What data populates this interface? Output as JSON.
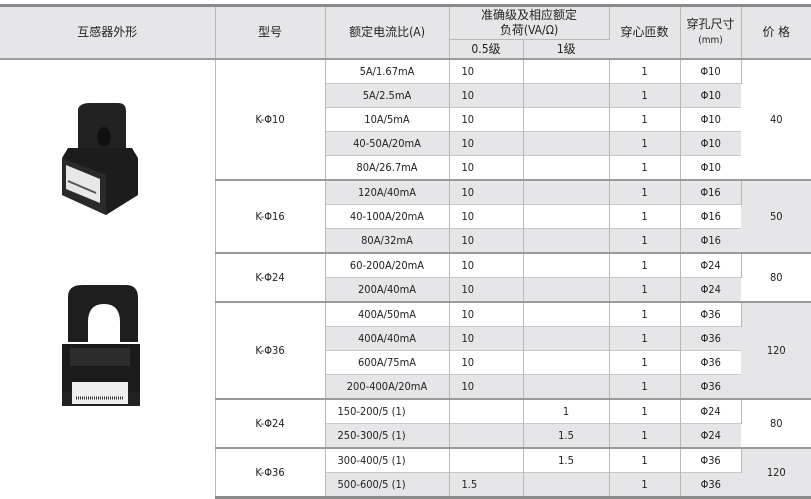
{
  "header": {
    "appearance": "互感器外形",
    "model": "型号",
    "ratio": "额定电流比(A)",
    "accuracy_line1": "准确级及相应额定",
    "accuracy_line2": "负荷(VA/Ω)",
    "class05": "0.5级",
    "class1": "1级",
    "turns": "穿心匝数",
    "hole_line1": "穿孔尺寸",
    "hole_line2": "(mm)",
    "price": "价 格"
  },
  "groups": [
    {
      "model": "K-Φ10",
      "price": "40",
      "rows": [
        {
          "ratio": "5A/1.67mA",
          "c05": "10",
          "c1": "",
          "turns": "1",
          "hole": "Φ10"
        },
        {
          "ratio": "5A/2.5mA",
          "c05": "10",
          "c1": "",
          "turns": "1",
          "hole": "Φ10"
        },
        {
          "ratio": "10A/5mA",
          "c05": "10",
          "c1": "",
          "turns": "1",
          "hole": "Φ10"
        },
        {
          "ratio": "40-50A/20mA",
          "c05": "10",
          "c1": "",
          "turns": "1",
          "hole": "Φ10"
        },
        {
          "ratio": "80A/26.7mA",
          "c05": "10",
          "c1": "",
          "turns": "1",
          "hole": "Φ10"
        }
      ]
    },
    {
      "model": "K-Φ16",
      "price": "50",
      "rows": [
        {
          "ratio": "120A/40mA",
          "c05": "10",
          "c1": "",
          "turns": "1",
          "hole": "Φ16"
        },
        {
          "ratio": "40-100A/20mA",
          "c05": "10",
          "c1": "",
          "turns": "1",
          "hole": "Φ16"
        },
        {
          "ratio": "80A/32mA",
          "c05": "10",
          "c1": "",
          "turns": "1",
          "hole": "Φ16"
        }
      ]
    },
    {
      "model": "K-Φ24",
      "price": "80",
      "rows": [
        {
          "ratio": "60-200A/20mA",
          "c05": "10",
          "c1": "",
          "turns": "1",
          "hole": "Φ24"
        },
        {
          "ratio": "200A/40mA",
          "c05": "10",
          "c1": "",
          "turns": "1",
          "hole": "Φ24"
        }
      ]
    },
    {
      "model": "K-Φ36",
      "price": "120",
      "rows": [
        {
          "ratio": "400A/50mA",
          "c05": "10",
          "c1": "",
          "turns": "1",
          "hole": "Φ36"
        },
        {
          "ratio": "400A/40mA",
          "c05": "10",
          "c1": "",
          "turns": "1",
          "hole": "Φ36"
        },
        {
          "ratio": "600A/75mA",
          "c05": "10",
          "c1": "",
          "turns": "1",
          "hole": "Φ36"
        },
        {
          "ratio": "200-400A/20mA",
          "c05": "10",
          "c1": "",
          "turns": "1",
          "hole": "Φ36"
        }
      ]
    },
    {
      "model": "K-Φ24",
      "price": "80",
      "rows": [
        {
          "ratio": "150-200/5 (1)",
          "c05": "",
          "c1": "1",
          "turns": "1",
          "hole": "Φ24"
        },
        {
          "ratio": "250-300/5 (1)",
          "c05": "",
          "c1": "1.5",
          "turns": "1",
          "hole": "Φ24"
        }
      ]
    },
    {
      "model": "K-Φ36",
      "price": "120",
      "rows": [
        {
          "ratio": "300-400/5 (1)",
          "c05": "",
          "c1": "1.5",
          "turns": "1",
          "hole": "Φ36"
        },
        {
          "ratio": "500-600/5 (1)",
          "c05": "1.5",
          "c1": "",
          "turns": "1",
          "hole": "Φ36"
        }
      ]
    }
  ],
  "colors": {
    "header_bg": "#e6e6e8",
    "stripe": "#e6e6e8",
    "device": "#1c1c1c"
  },
  "images": [
    "split-core-current-transformer-small",
    "split-core-current-transformer-large"
  ]
}
